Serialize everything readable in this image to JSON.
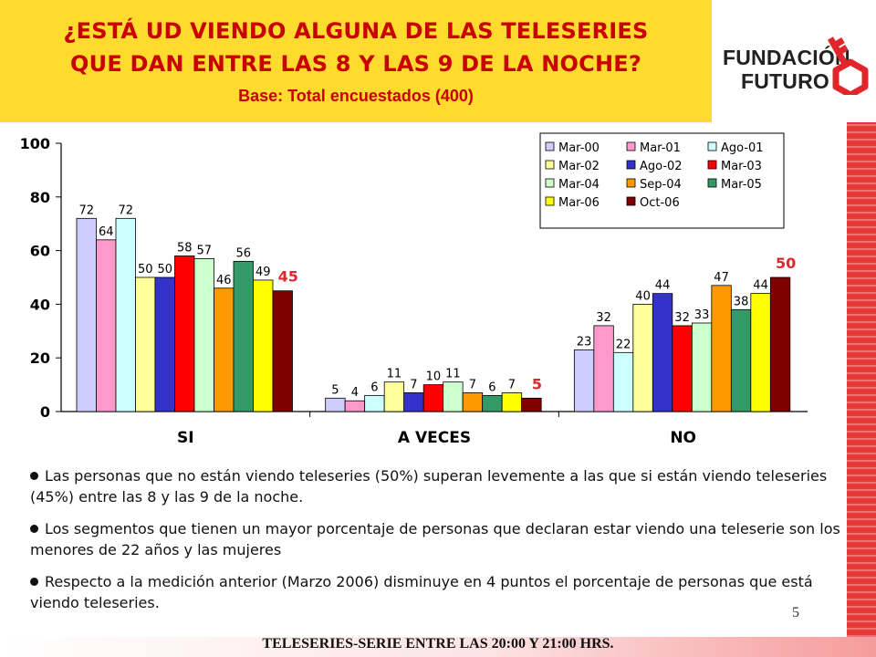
{
  "header": {
    "title_line1": "¿ESTÁ UD VIENDO ALGUNA DE LAS TELESERIES",
    "title_line2": "QUE DAN ENTRE LAS 8 Y LAS 9 DE LA NOCHE?",
    "subtitle": "Base: Total encuestados (400)",
    "background": "#ffdb2f",
    "title_color": "#c80000"
  },
  "logo": {
    "line1": "FUNDACIÓN",
    "line2": "FUTURO",
    "icon": "key-icon",
    "icon_color": "#e0262b"
  },
  "chart_data": {
    "type": "bar",
    "categories": [
      "SI",
      "A VECES",
      "NO"
    ],
    "ylim": [
      0,
      100
    ],
    "yticks": [
      "0",
      "20",
      "40",
      "60",
      "80",
      "100"
    ],
    "legend_position": "top-right",
    "series": [
      {
        "name": "Mar-00",
        "color": "#ccccff",
        "values": [
          72,
          5,
          23
        ]
      },
      {
        "name": "Mar-01",
        "color": "#ff99cc",
        "values": [
          64,
          4,
          32
        ]
      },
      {
        "name": "Ago-01",
        "color": "#ccffff",
        "values": [
          72,
          6,
          22
        ]
      },
      {
        "name": "Mar-02",
        "color": "#ffff99",
        "values": [
          50,
          11,
          40
        ]
      },
      {
        "name": "Ago-02",
        "color": "#3333cc",
        "values": [
          50,
          7,
          44
        ]
      },
      {
        "name": "Mar-03",
        "color": "#ff0000",
        "values": [
          58,
          10,
          32
        ]
      },
      {
        "name": "Mar-04",
        "color": "#ccffcc",
        "values": [
          57,
          11,
          33
        ]
      },
      {
        "name": "Sep-04",
        "color": "#ff9900",
        "values": [
          46,
          7,
          47
        ]
      },
      {
        "name": "Mar-05",
        "color": "#339966",
        "values": [
          56,
          6,
          38
        ]
      },
      {
        "name": "Mar-06",
        "color": "#ffff00",
        "values": [
          49,
          7,
          44
        ]
      },
      {
        "name": "Oct-06",
        "color": "#800000",
        "values": [
          45,
          5,
          50
        ]
      }
    ],
    "highlight_color": "#e0262b"
  },
  "bullets": [
    "Las personas que no están viendo teleseries (50%) superan levemente a las que si están viendo teleseries (45%) entre las 8 y las 9 de la noche.",
    "Los segmentos que tienen un mayor porcentaje de personas que declaran estar viendo una teleserie son los menores de 22 años y las mujeres",
    "Respecto a la medición anterior (Marzo 2006) disminuye en 4 puntos el porcentaje de personas que está viendo teleseries."
  ],
  "page_number": "5",
  "footer": "TELESERIES-SERIE ENTRE LAS 20:00 Y 21:00 HRS."
}
